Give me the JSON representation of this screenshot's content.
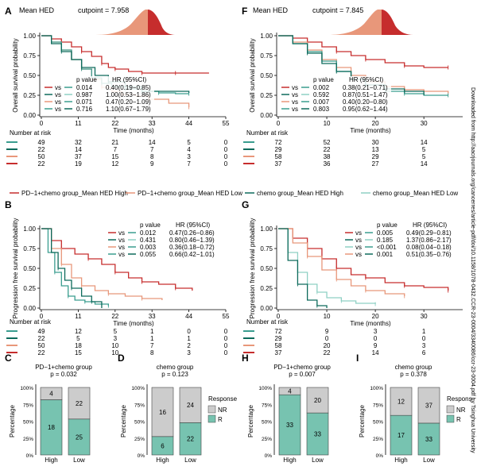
{
  "sidebar_text": "Downloaded from http://aacrjournals.org/cancerres/article-pdf/doi/10.1158/1078-0432.CCR-23-0004/3340086/ccr-23-0004.pdf by Tsinghua University",
  "colors": {
    "teal": "#3a9d8f",
    "darkteal": "#0d6b5c",
    "lightteal": "#8fd0c4",
    "red": "#c62d2d",
    "orange": "#e8977a",
    "nr": "#cccccc",
    "r": "#77c3b0"
  },
  "panels": {
    "A": {
      "letter": "A",
      "density_title": "Mean HED",
      "cutpoint": "cutpoint = 7.958",
      "ylabel": "Overall survival probability",
      "xlabel": "Time (months)",
      "xticks": [
        "0",
        "11",
        "22",
        "33",
        "44",
        "55"
      ],
      "yticks": [
        "0.00",
        "0.25",
        "0.50",
        "0.75",
        "1.00"
      ],
      "stats_header": [
        "p value",
        "HR (95%CI)"
      ],
      "stats": [
        {
          "vs": "vs",
          "p": "0.014",
          "hr": "0.40(0.19−0.85)"
        },
        {
          "vs": "vs",
          "p": "0.987",
          "hr": "1.00(0.53−1.86)"
        },
        {
          "vs": "vs",
          "p": "0.071",
          "hr": "0.47(0.20−1.09)"
        },
        {
          "vs": "vs",
          "p": "0.716",
          "hr": "1.10(0.67−1.79)"
        }
      ],
      "risk_title": "Number at risk",
      "risk": [
        [
          "49",
          "32",
          "21",
          "14",
          "5",
          "0"
        ],
        [
          "22",
          "14",
          "7",
          "7",
          "4",
          "0"
        ],
        [
          "50",
          "37",
          "15",
          "8",
          "3",
          "0"
        ],
        [
          "22",
          "19",
          "12",
          "9",
          "7",
          "0"
        ]
      ]
    },
    "B": {
      "letter": "B",
      "ylabel": "Progression free survival probability",
      "xlabel": "Time (months)",
      "xticks": [
        "0",
        "11",
        "22",
        "33",
        "44",
        "55"
      ],
      "yticks": [
        "0.00",
        "0.25",
        "0.50",
        "0.75",
        "1.00"
      ],
      "stats_header": [
        "p value",
        "HR (95%CI)"
      ],
      "stats": [
        {
          "vs": "vs",
          "p": "0.012",
          "hr": "0.47(0.26−0.86)"
        },
        {
          "vs": "vs",
          "p": "0.431",
          "hr": "0.80(0.46−1.39)"
        },
        {
          "vs": "vs",
          "p": "0.003",
          "hr": "0.36(0.18−0.72)"
        },
        {
          "vs": "vs",
          "p": "0.055",
          "hr": "0.66(0.42−1.01)"
        }
      ],
      "risk_title": "Number at risk",
      "risk": [
        [
          "49",
          "12",
          "5",
          "1",
          "0",
          "0"
        ],
        [
          "22",
          "5",
          "3",
          "1",
          "1",
          "0"
        ],
        [
          "50",
          "18",
          "10",
          "7",
          "2",
          "0"
        ],
        [
          "22",
          "15",
          "10",
          "8",
          "3",
          "0"
        ]
      ]
    },
    "F": {
      "letter": "F",
      "density_title": "Mean HED",
      "cutpoint": "cutpoint = 7.845",
      "ylabel": "Overall survival probability",
      "xlabel": "Time (months)",
      "xticks": [
        "0",
        "10",
        "20",
        "30"
      ],
      "yticks": [
        "0.00",
        "0.25",
        "0.50",
        "0.75",
        "1.00"
      ],
      "stats_header": [
        "p value",
        "HR (95%CI)"
      ],
      "stats": [
        {
          "vs": "vs",
          "p": "0.002",
          "hr": "0.38(0.21−0.71)"
        },
        {
          "vs": "vs",
          "p": "0.592",
          "hr": "0.87(0.51−1.47)"
        },
        {
          "vs": "vs",
          "p": "0.007",
          "hr": "0.40(0.20−0.80)"
        },
        {
          "vs": "vs",
          "p": "0.803",
          "hr": "0.95(0.62−1.44)"
        }
      ],
      "risk_title": "Number at risk",
      "risk": [
        [
          "72",
          "52",
          "30",
          "14"
        ],
        [
          "29",
          "22",
          "13",
          "5"
        ],
        [
          "58",
          "38",
          "29",
          "5"
        ],
        [
          "37",
          "36",
          "27",
          "14"
        ]
      ]
    },
    "G": {
      "letter": "G",
      "ylabel": "Progression free survival probability",
      "xlabel": "Time (months)",
      "xticks": [
        "0",
        "10",
        "20",
        "30"
      ],
      "yticks": [
        "0.00",
        "0.25",
        "0.50",
        "0.75",
        "1.00"
      ],
      "stats_header": [
        "p value",
        "HR (95%CI)"
      ],
      "stats": [
        {
          "vs": "vs",
          "p": "0.005",
          "hr": "0.49(0.29−0.81)"
        },
        {
          "vs": "vs",
          "p": "0.185",
          "hr": "1.37(0.86−2.17)"
        },
        {
          "vs": "vs",
          "p": "<0.001",
          "hr": "0.08(0.04−0.18)"
        },
        {
          "vs": "vs",
          "p": "0.001",
          "hr": "0.51(0.35−0.76)"
        }
      ],
      "risk_title": "Number at risk",
      "risk": [
        [
          "72",
          "9",
          "3",
          "1"
        ],
        [
          "29",
          "0",
          "0",
          "0"
        ],
        [
          "58",
          "20",
          "9",
          "3"
        ],
        [
          "37",
          "22",
          "14",
          "6"
        ]
      ]
    },
    "C": {
      "letter": "C",
      "title": "PD−1+chemo group",
      "p": "p = 0.032",
      "ylabel": "Percentage",
      "yticks": [
        "0%",
        "25%",
        "50%",
        "75%",
        "100%"
      ],
      "cats": [
        "High",
        "Low"
      ],
      "R": [
        18,
        25
      ],
      "NR": [
        4,
        22
      ]
    },
    "D": {
      "letter": "D",
      "title": "chemo group",
      "p": "p = 0.123",
      "ylabel": "Percentage",
      "yticks": [
        "0%",
        "25%",
        "50%",
        "75%",
        "100%"
      ],
      "cats": [
        "High",
        "Low"
      ],
      "R": [
        6,
        22
      ],
      "NR": [
        16,
        24
      ]
    },
    "H": {
      "letter": "H",
      "title": "PD−1+chemo group",
      "p": "p = 0.007",
      "ylabel": "Percentage",
      "yticks": [
        "0%",
        "25%",
        "50%",
        "75%",
        "100%"
      ],
      "cats": [
        "High",
        "Low"
      ],
      "R": [
        33,
        33
      ],
      "NR": [
        4,
        20
      ]
    },
    "I": {
      "letter": "I",
      "title": "chemo group",
      "p": "p = 0.378",
      "ylabel": "Percentage",
      "yticks": [
        "0%",
        "25%",
        "50%",
        "75%",
        "100%"
      ],
      "cats": [
        "High",
        "Low"
      ],
      "R": [
        17,
        33
      ],
      "NR": [
        12,
        37
      ]
    }
  },
  "legend_left": [
    {
      "label": "PD−1+chemo group_Mean HED High",
      "color": "red"
    },
    {
      "label": "PD−1+chemo group_Mean HED Low",
      "color": "orange"
    }
  ],
  "legend_right": [
    {
      "label": "chemo group_Mean HED High",
      "color": "darkteal"
    },
    {
      "label": "chemo group_Mean HED Low",
      "color": "lightteal"
    }
  ],
  "response_legend": {
    "title": "Response",
    "items": [
      "NR",
      "R"
    ]
  },
  "response_legend_right": {
    "title": "Respons",
    "items": [
      "NR",
      "R"
    ]
  },
  "chart_data": [
    {
      "panel": "A",
      "type": "line",
      "xlim": [
        0,
        55
      ],
      "ylim": [
        0,
        1
      ],
      "series": [
        {
          "color": "red",
          "x": [
            0,
            3,
            6,
            9,
            12,
            15,
            18,
            20,
            22,
            26,
            30,
            35,
            40,
            50
          ],
          "y": [
            1,
            0.96,
            0.92,
            0.86,
            0.8,
            0.74,
            0.65,
            0.6,
            0.58,
            0.55,
            0.53,
            0.53,
            0.53,
            0.53
          ]
        },
        {
          "color": "orange",
          "x": [
            0,
            3,
            6,
            9,
            12,
            15,
            18,
            21,
            24,
            28,
            32,
            38,
            44
          ],
          "y": [
            1,
            0.92,
            0.82,
            0.7,
            0.58,
            0.45,
            0.35,
            0.3,
            0.26,
            0.24,
            0.2,
            0.15,
            0.1
          ]
        },
        {
          "color": "teal",
          "x": [
            0,
            3,
            6,
            9,
            12,
            15,
            18,
            21,
            25,
            30,
            35,
            40,
            44
          ],
          "y": [
            1,
            0.92,
            0.82,
            0.7,
            0.58,
            0.47,
            0.4,
            0.36,
            0.33,
            0.3,
            0.28,
            0.27,
            0.27
          ]
        },
        {
          "color": "darkteal",
          "x": [
            0,
            3,
            6,
            9,
            12,
            16,
            20,
            25,
            30,
            44
          ],
          "y": [
            1,
            0.9,
            0.8,
            0.7,
            0.6,
            0.5,
            0.42,
            0.36,
            0.3,
            0.28
          ]
        }
      ]
    },
    {
      "panel": "B",
      "type": "line",
      "xlim": [
        0,
        55
      ],
      "ylim": [
        0,
        1
      ],
      "series": [
        {
          "color": "red",
          "x": [
            0,
            3,
            6,
            10,
            14,
            18,
            22,
            26,
            30,
            35,
            40,
            45
          ],
          "y": [
            1,
            0.85,
            0.75,
            0.68,
            0.62,
            0.55,
            0.45,
            0.38,
            0.33,
            0.3,
            0.25,
            0.22
          ]
        },
        {
          "color": "orange",
          "x": [
            0,
            3,
            6,
            9,
            12,
            16,
            20,
            25,
            30,
            36
          ],
          "y": [
            1,
            0.75,
            0.55,
            0.38,
            0.28,
            0.22,
            0.18,
            0.15,
            0.12,
            0.1
          ]
        },
        {
          "color": "teal",
          "x": [
            0,
            2,
            4,
            6,
            8,
            10,
            13,
            16,
            20
          ],
          "y": [
            1,
            0.7,
            0.45,
            0.28,
            0.15,
            0.1,
            0.08,
            0.05,
            0.03
          ]
        },
        {
          "color": "darkteal",
          "x": [
            0,
            3,
            5,
            7,
            9,
            12,
            15,
            18
          ],
          "y": [
            1,
            0.7,
            0.5,
            0.35,
            0.25,
            0.15,
            0.08,
            0
          ]
        }
      ]
    },
    {
      "panel": "F",
      "type": "line",
      "xlim": [
        0,
        38
      ],
      "ylim": [
        0,
        1
      ],
      "series": [
        {
          "color": "red",
          "x": [
            0,
            3,
            6,
            9,
            12,
            15,
            18,
            22,
            26,
            30,
            35
          ],
          "y": [
            1,
            0.97,
            0.92,
            0.86,
            0.8,
            0.75,
            0.7,
            0.66,
            0.62,
            0.6,
            0.6
          ]
        },
        {
          "color": "orange",
          "x": [
            0,
            3,
            6,
            9,
            12,
            15,
            18,
            22,
            26,
            30,
            35
          ],
          "y": [
            1,
            0.92,
            0.82,
            0.7,
            0.6,
            0.5,
            0.42,
            0.36,
            0.32,
            0.3,
            0.28
          ]
        },
        {
          "color": "teal",
          "x": [
            0,
            3,
            6,
            9,
            12,
            15,
            18,
            22,
            26,
            30,
            35
          ],
          "y": [
            1,
            0.9,
            0.8,
            0.68,
            0.55,
            0.45,
            0.38,
            0.3,
            0.27,
            0.25,
            0.25
          ]
        },
        {
          "color": "darkteal",
          "x": [
            0,
            3,
            6,
            9,
            12,
            15,
            18,
            22,
            26,
            30
          ],
          "y": [
            1,
            0.9,
            0.78,
            0.65,
            0.55,
            0.45,
            0.38,
            0.33,
            0.3,
            0.25
          ]
        }
      ]
    },
    {
      "panel": "G",
      "type": "line",
      "xlim": [
        0,
        38
      ],
      "ylim": [
        0,
        1
      ],
      "series": [
        {
          "color": "red",
          "x": [
            0,
            3,
            6,
            9,
            12,
            15,
            18,
            22,
            26,
            30,
            35
          ],
          "y": [
            1,
            0.88,
            0.75,
            0.62,
            0.5,
            0.42,
            0.38,
            0.32,
            0.28,
            0.26,
            0.22
          ]
        },
        {
          "color": "orange",
          "x": [
            0,
            3,
            6,
            9,
            12,
            15,
            18,
            22,
            26
          ],
          "y": [
            1,
            0.82,
            0.65,
            0.48,
            0.36,
            0.28,
            0.22,
            0.18,
            0.15
          ]
        },
        {
          "color": "lightteal",
          "x": [
            0,
            2,
            4,
            6,
            8,
            10,
            13,
            16,
            20
          ],
          "y": [
            1,
            0.7,
            0.45,
            0.3,
            0.2,
            0.13,
            0.09,
            0.06,
            0.05
          ]
        },
        {
          "color": "darkteal",
          "x": [
            0,
            2,
            4,
            6,
            8,
            10
          ],
          "y": [
            1,
            0.6,
            0.3,
            0.1,
            0.03,
            0
          ]
        }
      ]
    }
  ]
}
